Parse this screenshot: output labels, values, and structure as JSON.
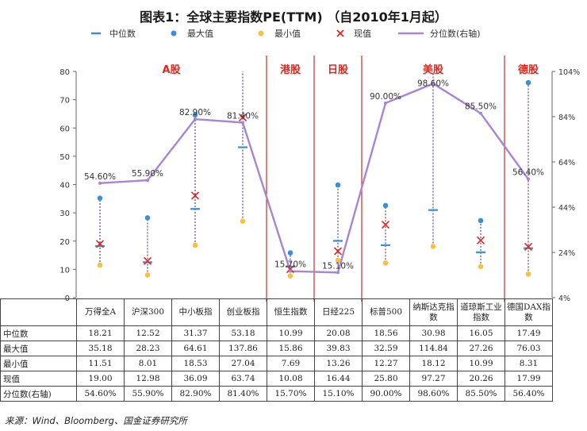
{
  "title": "图表1：全球主要指数PE(TTM) （自2010年1月起）",
  "legend": {
    "median": "中位数",
    "max": "最大值",
    "min": "最小值",
    "current": "现值",
    "percentile": "分位数(右轴)"
  },
  "colors": {
    "median": "#3a8fd6",
    "max": "#3a8fd6",
    "min": "#f5c242",
    "current": "#e0261c",
    "percentile": "#a884d4",
    "range_line": "#6a4fa0",
    "market_divider": "#e0261c",
    "market_label": "#e0261c"
  },
  "markets": [
    {
      "label": "A股",
      "span": [
        0,
        3
      ]
    },
    {
      "label": "港股",
      "span": [
        4,
        4
      ]
    },
    {
      "label": "日股",
      "span": [
        5,
        5
      ]
    },
    {
      "label": "美股",
      "span": [
        6,
        8
      ]
    },
    {
      "label": "德股",
      "span": [
        9,
        9
      ]
    }
  ],
  "table": {
    "row_labels": [
      "中位数",
      "最大值",
      "最小值",
      "现值",
      "分位数(右轴)"
    ],
    "rows": [
      [
        "18.21",
        "12.52",
        "31.37",
        "53.18",
        "10.99",
        "20.08",
        "18.56",
        "30.98",
        "16.05",
        "17.49"
      ],
      [
        "35.18",
        "28.23",
        "64.61",
        "137.86",
        "15.86",
        "39.83",
        "32.59",
        "114.84",
        "27.26",
        "76.03"
      ],
      [
        "11.51",
        "8.01",
        "18.53",
        "27.04",
        "7.69",
        "13.26",
        "12.27",
        "18.12",
        "10.99",
        "8.31"
      ],
      [
        "19.00",
        "12.98",
        "36.09",
        "63.74",
        "10.08",
        "16.44",
        "25.80",
        "97.27",
        "20.26",
        "17.99"
      ],
      [
        "54.60%",
        "55.90%",
        "82.90%",
        "81.40%",
        "15.70%",
        "15.10%",
        "90.00%",
        "98.60%",
        "85.50%",
        "56.40%"
      ]
    ]
  },
  "source": "来源：Wind、Bloomberg、国金证券研究所",
  "chart_data": {
    "type": "line",
    "title": "图表1：全球主要指数PE(TTM) （自2010年1月起）",
    "categories": [
      "万得全A",
      "沪深300",
      "中小板指",
      "创业板指",
      "恒生指数",
      "日经225",
      "标普500",
      "纳斯达克指数",
      "道琼斯工业指数",
      "德国DAX指数"
    ],
    "series": [
      {
        "name": "中位数",
        "values": [
          18.21,
          12.52,
          31.37,
          53.18,
          10.99,
          20.08,
          18.56,
          30.98,
          16.05,
          17.49
        ]
      },
      {
        "name": "最大值",
        "values": [
          35.18,
          28.23,
          64.61,
          137.86,
          15.86,
          39.83,
          32.59,
          114.84,
          27.26,
          76.03
        ]
      },
      {
        "name": "最小值",
        "values": [
          11.51,
          8.01,
          18.53,
          27.04,
          7.69,
          13.26,
          12.27,
          18.12,
          10.99,
          8.31
        ]
      },
      {
        "name": "现值",
        "values": [
          19.0,
          12.98,
          36.09,
          63.74,
          10.08,
          16.44,
          25.8,
          97.27,
          20.26,
          17.99
        ]
      },
      {
        "name": "分位数(右轴)",
        "axis": "right",
        "values": [
          54.6,
          55.9,
          82.9,
          81.4,
          15.7,
          15.1,
          90.0,
          98.6,
          85.5,
          56.4
        ]
      }
    ],
    "point_labels": [
      "54.60%",
      "55.90%",
      "82.90%",
      "81.40%",
      "15.70%",
      "15.10%",
      "90.00%",
      "98.60%",
      "85.50%",
      "56.40%"
    ],
    "ylim": [
      0,
      80
    ],
    "yticks": [
      0,
      10,
      20,
      30,
      40,
      50,
      60,
      70,
      80
    ],
    "y2lim": [
      4,
      104
    ],
    "y2ticks": [
      "4%",
      "24%",
      "44%",
      "64%",
      "84%",
      "104%"
    ],
    "grid": false,
    "legend_position": "top"
  }
}
